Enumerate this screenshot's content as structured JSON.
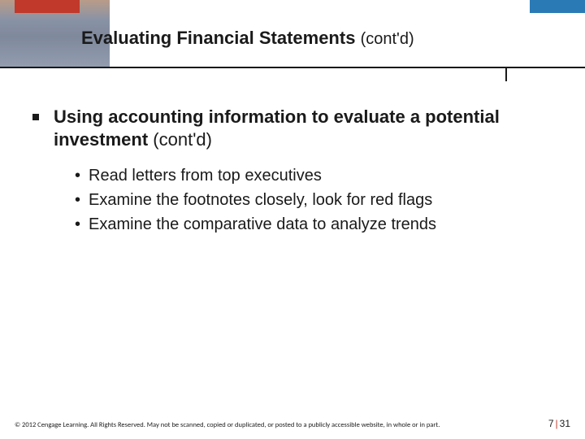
{
  "colors": {
    "red_accent": "#c0392b",
    "blue_accent": "#2a7bb5",
    "text": "#1a1a1a",
    "background": "#ffffff"
  },
  "header": {
    "title_main": "Evaluating Financial Statements",
    "title_contd": "(cont'd)"
  },
  "body": {
    "main_bold": "Using accounting information to evaluate a potential investment",
    "main_contd": "(cont'd)",
    "sub_items": [
      "Read letters from top executives",
      "Examine the footnotes closely, look for red flags",
      "Examine the comparative data to analyze trends"
    ]
  },
  "footer": {
    "copyright": "© 2012 Cengage Learning. All Rights Reserved. May not be scanned, copied or duplicated, or posted to a publicly accessible website, in whole or in part.",
    "chapter": "7",
    "page": "31"
  }
}
